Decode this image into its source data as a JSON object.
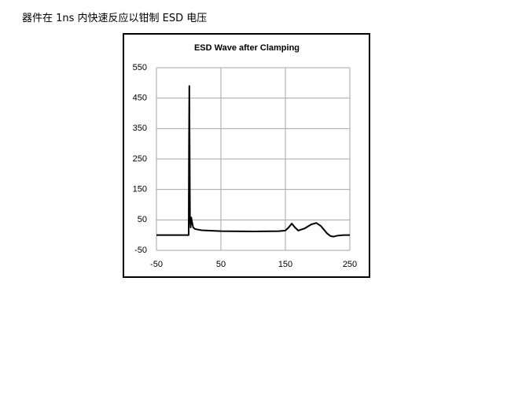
{
  "caption": "器件在 1ns 内快速反应以钳制 ESD 电压",
  "chart_data": {
    "type": "line",
    "title": "ESD Wave after Clamping",
    "x": [
      -50,
      -1,
      0,
      0.5,
      1,
      2,
      3,
      4,
      5,
      7,
      10,
      20,
      50,
      100,
      140,
      150,
      155,
      160,
      165,
      170,
      180,
      190,
      198,
      205,
      215,
      220,
      225,
      230,
      240,
      250
    ],
    "values": [
      0,
      0,
      0,
      300,
      490,
      60,
      25,
      58,
      45,
      25,
      20,
      16,
      13,
      12,
      13,
      15,
      25,
      38,
      25,
      15,
      22,
      35,
      40,
      30,
      5,
      -3,
      -5,
      -2,
      0,
      0
    ],
    "color": "#000000",
    "xlim": [
      -50,
      250
    ],
    "xticks": [
      -50,
      50,
      150,
      250
    ],
    "ylim": [
      -50,
      550
    ],
    "yticks": [
      -50,
      50,
      150,
      250,
      350,
      450,
      550
    ],
    "grid": true
  }
}
